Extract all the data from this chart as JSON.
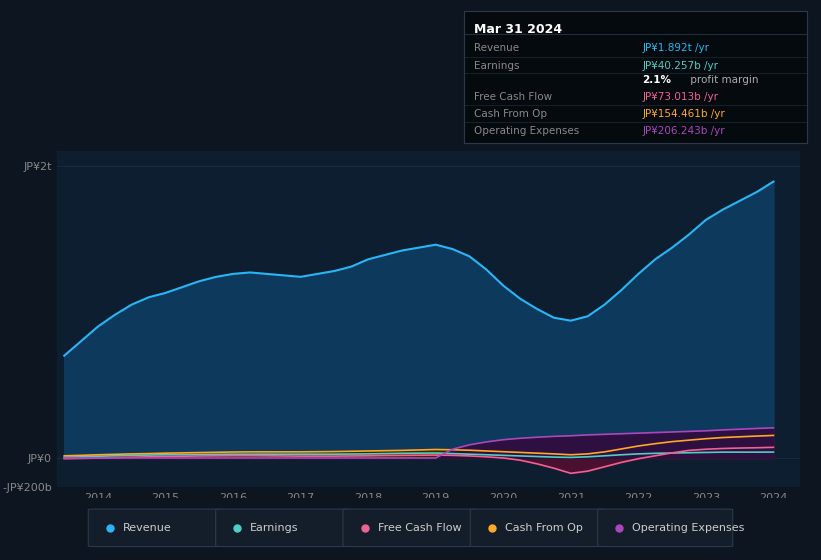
{
  "bg_color": "#0d1520",
  "plot_bg_color": "#0d1e30",
  "grid_color": "#1a2e44",
  "years": [
    2013.5,
    2013.75,
    2014.0,
    2014.25,
    2014.5,
    2014.75,
    2015.0,
    2015.25,
    2015.5,
    2015.75,
    2016.0,
    2016.25,
    2016.5,
    2016.75,
    2017.0,
    2017.25,
    2017.5,
    2017.75,
    2018.0,
    2018.25,
    2018.5,
    2018.75,
    2019.0,
    2019.25,
    2019.5,
    2019.75,
    2020.0,
    2020.25,
    2020.5,
    2020.75,
    2021.0,
    2021.25,
    2021.5,
    2021.75,
    2022.0,
    2022.25,
    2022.5,
    2022.75,
    2023.0,
    2023.25,
    2023.5,
    2023.75,
    2024.0
  ],
  "revenue": [
    700,
    800,
    900,
    980,
    1050,
    1100,
    1130,
    1170,
    1210,
    1240,
    1260,
    1270,
    1260,
    1250,
    1240,
    1260,
    1280,
    1310,
    1360,
    1390,
    1420,
    1440,
    1460,
    1430,
    1380,
    1290,
    1180,
    1090,
    1020,
    960,
    940,
    970,
    1050,
    1150,
    1260,
    1360,
    1440,
    1530,
    1630,
    1700,
    1760,
    1820,
    1892
  ],
  "earnings": [
    5,
    8,
    12,
    15,
    18,
    20,
    22,
    23,
    24,
    25,
    26,
    26,
    26,
    26,
    26,
    26,
    26,
    27,
    28,
    30,
    32,
    33,
    34,
    30,
    26,
    22,
    18,
    14,
    10,
    6,
    4,
    8,
    15,
    22,
    28,
    32,
    34,
    36,
    38,
    40,
    40,
    40,
    40.257
  ],
  "free_cash_flow": [
    -5,
    -3,
    -1,
    2,
    5,
    8,
    10,
    12,
    14,
    15,
    16,
    16,
    15,
    14,
    13,
    13,
    13,
    14,
    15,
    17,
    18,
    19,
    20,
    18,
    14,
    8,
    0,
    -15,
    -40,
    -70,
    -105,
    -90,
    -60,
    -30,
    -5,
    15,
    35,
    52,
    60,
    65,
    68,
    70,
    73.013
  ],
  "cash_from_op": [
    15,
    18,
    22,
    25,
    28,
    30,
    33,
    35,
    37,
    39,
    41,
    42,
    42,
    42,
    42,
    43,
    44,
    46,
    48,
    50,
    52,
    55,
    58,
    56,
    53,
    48,
    43,
    38,
    33,
    28,
    22,
    28,
    42,
    62,
    82,
    98,
    112,
    122,
    132,
    140,
    145,
    150,
    154.461
  ],
  "operating_expenses": [
    0,
    0,
    0,
    0,
    0,
    0,
    0,
    0,
    0,
    0,
    0,
    0,
    0,
    0,
    0,
    0,
    0,
    0,
    0,
    0,
    0,
    0,
    0,
    60,
    90,
    110,
    125,
    135,
    142,
    148,
    152,
    158,
    162,
    166,
    170,
    174,
    178,
    182,
    186,
    192,
    197,
    202,
    206.243
  ],
  "ylim_min": -200,
  "ylim_max": 2100,
  "xlim_min": 2013.4,
  "xlim_max": 2024.4,
  "yticks": [
    -200,
    0,
    2000
  ],
  "ytick_labels": [
    "-JP¥200b",
    "JP¥0",
    "JP¥2t"
  ],
  "xticks": [
    2014,
    2015,
    2016,
    2017,
    2018,
    2019,
    2020,
    2021,
    2022,
    2023,
    2024
  ],
  "colors": {
    "revenue": "#29b6f6",
    "revenue_fill": "#0d3a5c",
    "earnings": "#4dd0c4",
    "earnings_fill": "#0d3535",
    "free_cash_flow": "#f06292",
    "free_cash_flow_fill": "#4a1030",
    "cash_from_op": "#ffa726",
    "cash_from_op_fill": "#3d2800",
    "operating_expenses": "#ab47bc",
    "operating_expenses_fill": "#2d1040"
  },
  "info_box": {
    "title": "Mar 31 2024",
    "title_color": "#ffffff",
    "bg_color": "#050a0f",
    "border_color": "#2a3a4a",
    "rows": [
      {
        "label": "Revenue",
        "label_color": "#888888",
        "value": "JP¥1.892t /yr",
        "value_color": "#29b6f6"
      },
      {
        "label": "Earnings",
        "label_color": "#888888",
        "value": "JP¥40.257b /yr",
        "value_color": "#4dd0c4"
      },
      {
        "label": "",
        "label_color": "",
        "value_bold": "2.1%",
        "value_rest": " profit margin",
        "bold_color": "#ffffff",
        "rest_color": "#aaaaaa"
      },
      {
        "label": "Free Cash Flow",
        "label_color": "#888888",
        "value": "JP¥73.013b /yr",
        "value_color": "#f06292"
      },
      {
        "label": "Cash From Op",
        "label_color": "#888888",
        "value": "JP¥154.461b /yr",
        "value_color": "#ffa726"
      },
      {
        "label": "Operating Expenses",
        "label_color": "#888888",
        "value": "JP¥206.243b /yr",
        "value_color": "#ab47bc"
      }
    ]
  },
  "legend_items": [
    {
      "label": "Revenue",
      "color": "#29b6f6"
    },
    {
      "label": "Earnings",
      "color": "#4dd0c4"
    },
    {
      "label": "Free Cash Flow",
      "color": "#f06292"
    },
    {
      "label": "Cash From Op",
      "color": "#ffa726"
    },
    {
      "label": "Operating Expenses",
      "color": "#ab47bc"
    }
  ]
}
